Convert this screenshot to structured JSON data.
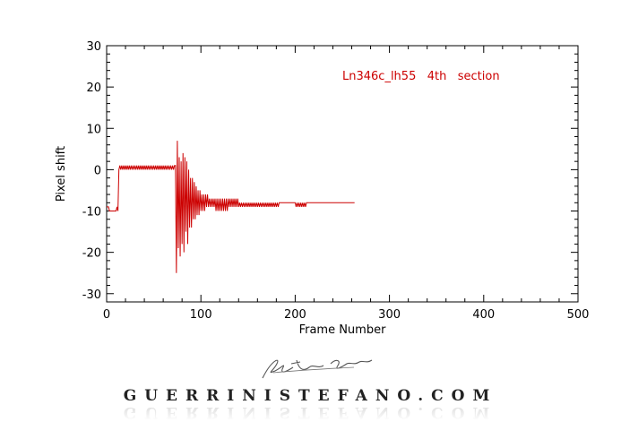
{
  "chart_data": {
    "type": "line",
    "title": "",
    "xlabel": "Frame Number",
    "ylabel": "Pixel shift",
    "xlim": [
      0,
      500
    ],
    "ylim": [
      -32,
      30
    ],
    "xticks": [
      0,
      100,
      200,
      300,
      400,
      500
    ],
    "yticks": [
      -30,
      -20,
      -10,
      0,
      10,
      20,
      30
    ],
    "grid": false,
    "line_color": "#cc0000",
    "annotation": "Ln346c_lh55   4th   section",
    "series": [
      {
        "values": [
          [
            0,
            -9
          ],
          [
            2,
            -9
          ],
          [
            3,
            -10
          ],
          [
            10,
            -10
          ],
          [
            11,
            -9
          ],
          [
            12,
            -10
          ],
          [
            13,
            0
          ],
          [
            14,
            1
          ],
          [
            15,
            0
          ],
          [
            16,
            1
          ],
          [
            17,
            0
          ],
          [
            18,
            1
          ],
          [
            19,
            0
          ],
          [
            20,
            1
          ],
          [
            21,
            0
          ],
          [
            22,
            1
          ],
          [
            23,
            0
          ],
          [
            24,
            1
          ],
          [
            25,
            0
          ],
          [
            26,
            1
          ],
          [
            27,
            0
          ],
          [
            28,
            1
          ],
          [
            29,
            0
          ],
          [
            30,
            1
          ],
          [
            31,
            0
          ],
          [
            32,
            1
          ],
          [
            33,
            0
          ],
          [
            34,
            1
          ],
          [
            35,
            0
          ],
          [
            36,
            1
          ],
          [
            37,
            0
          ],
          [
            38,
            1
          ],
          [
            39,
            0
          ],
          [
            40,
            1
          ],
          [
            41,
            0
          ],
          [
            42,
            1
          ],
          [
            43,
            0
          ],
          [
            44,
            1
          ],
          [
            45,
            0
          ],
          [
            46,
            1
          ],
          [
            47,
            0
          ],
          [
            48,
            1
          ],
          [
            49,
            0
          ],
          [
            50,
            1
          ],
          [
            51,
            0
          ],
          [
            52,
            1
          ],
          [
            53,
            0
          ],
          [
            54,
            1
          ],
          [
            55,
            0
          ],
          [
            56,
            1
          ],
          [
            57,
            0
          ],
          [
            58,
            1
          ],
          [
            59,
            0
          ],
          [
            60,
            1
          ],
          [
            61,
            0
          ],
          [
            62,
            1
          ],
          [
            63,
            0
          ],
          [
            64,
            1
          ],
          [
            65,
            0
          ],
          [
            66,
            1
          ],
          [
            67,
            0
          ],
          [
            68,
            1
          ],
          [
            69,
            0
          ],
          [
            70,
            1
          ],
          [
            71,
            0
          ],
          [
            72,
            1
          ],
          [
            73,
            1
          ],
          [
            74,
            -25
          ],
          [
            75,
            7
          ],
          [
            76,
            -19
          ],
          [
            77,
            3
          ],
          [
            78,
            -21
          ],
          [
            79,
            2
          ],
          [
            80,
            -18
          ],
          [
            81,
            4
          ],
          [
            82,
            -20
          ],
          [
            83,
            3
          ],
          [
            84,
            -15
          ],
          [
            85,
            2
          ],
          [
            86,
            -18
          ],
          [
            87,
            0
          ],
          [
            88,
            -14
          ],
          [
            89,
            -2
          ],
          [
            90,
            -14
          ],
          [
            91,
            -2
          ],
          [
            92,
            -12
          ],
          [
            93,
            -3
          ],
          [
            94,
            -12
          ],
          [
            95,
            -4
          ],
          [
            96,
            -11
          ],
          [
            97,
            -5
          ],
          [
            98,
            -11
          ],
          [
            99,
            -5
          ],
          [
            100,
            -10
          ],
          [
            101,
            -6
          ],
          [
            102,
            -10
          ],
          [
            103,
            -6
          ],
          [
            104,
            -10
          ],
          [
            105,
            -6
          ],
          [
            106,
            -9
          ],
          [
            107,
            -6
          ],
          [
            108,
            -9
          ],
          [
            109,
            -7
          ],
          [
            110,
            -9
          ],
          [
            111,
            -7
          ],
          [
            112,
            -9
          ],
          [
            113,
            -7
          ],
          [
            114,
            -9
          ],
          [
            115,
            -7
          ],
          [
            116,
            -10
          ],
          [
            117,
            -7
          ],
          [
            118,
            -10
          ],
          [
            119,
            -7
          ],
          [
            120,
            -10
          ],
          [
            121,
            -7
          ],
          [
            122,
            -10
          ],
          [
            123,
            -7
          ],
          [
            124,
            -10
          ],
          [
            125,
            -7
          ],
          [
            126,
            -10
          ],
          [
            127,
            -7
          ],
          [
            128,
            -10
          ],
          [
            129,
            -7
          ],
          [
            130,
            -9
          ],
          [
            131,
            -7
          ],
          [
            132,
            -9
          ],
          [
            133,
            -7
          ],
          [
            134,
            -9
          ],
          [
            135,
            -7
          ],
          [
            136,
            -9
          ],
          [
            137,
            -7
          ],
          [
            138,
            -9
          ],
          [
            139,
            -7
          ],
          [
            140,
            -9
          ],
          [
            141,
            -8
          ],
          [
            142,
            -9
          ],
          [
            143,
            -8
          ],
          [
            144,
            -9
          ],
          [
            145,
            -8
          ],
          [
            146,
            -9
          ],
          [
            147,
            -8
          ],
          [
            148,
            -9
          ],
          [
            149,
            -8
          ],
          [
            150,
            -9
          ],
          [
            151,
            -8
          ],
          [
            152,
            -9
          ],
          [
            153,
            -8
          ],
          [
            154,
            -9
          ],
          [
            155,
            -8
          ],
          [
            156,
            -9
          ],
          [
            157,
            -8
          ],
          [
            158,
            -9
          ],
          [
            159,
            -8
          ],
          [
            160,
            -9
          ],
          [
            161,
            -8
          ],
          [
            162,
            -9
          ],
          [
            163,
            -8
          ],
          [
            164,
            -9
          ],
          [
            165,
            -8
          ],
          [
            166,
            -9
          ],
          [
            167,
            -8
          ],
          [
            168,
            -9
          ],
          [
            169,
            -8
          ],
          [
            170,
            -9
          ],
          [
            171,
            -8
          ],
          [
            172,
            -9
          ],
          [
            173,
            -8
          ],
          [
            174,
            -9
          ],
          [
            175,
            -8
          ],
          [
            176,
            -9
          ],
          [
            177,
            -8
          ],
          [
            178,
            -9
          ],
          [
            179,
            -8
          ],
          [
            180,
            -9
          ],
          [
            181,
            -8
          ],
          [
            182,
            -9
          ],
          [
            183,
            -8
          ],
          [
            184,
            -8
          ],
          [
            200,
            -8
          ],
          [
            201,
            -9
          ],
          [
            202,
            -8
          ],
          [
            203,
            -9
          ],
          [
            204,
            -8
          ],
          [
            205,
            -9
          ],
          [
            206,
            -8
          ],
          [
            207,
            -9
          ],
          [
            208,
            -8
          ],
          [
            209,
            -9
          ],
          [
            210,
            -8
          ],
          [
            211,
            -9
          ],
          [
            212,
            -8
          ],
          [
            263,
            -8
          ]
        ]
      }
    ]
  },
  "watermark": {
    "signature_text": "Stefano Guerrini",
    "site": "GUERRINISTEFANO.COM"
  }
}
